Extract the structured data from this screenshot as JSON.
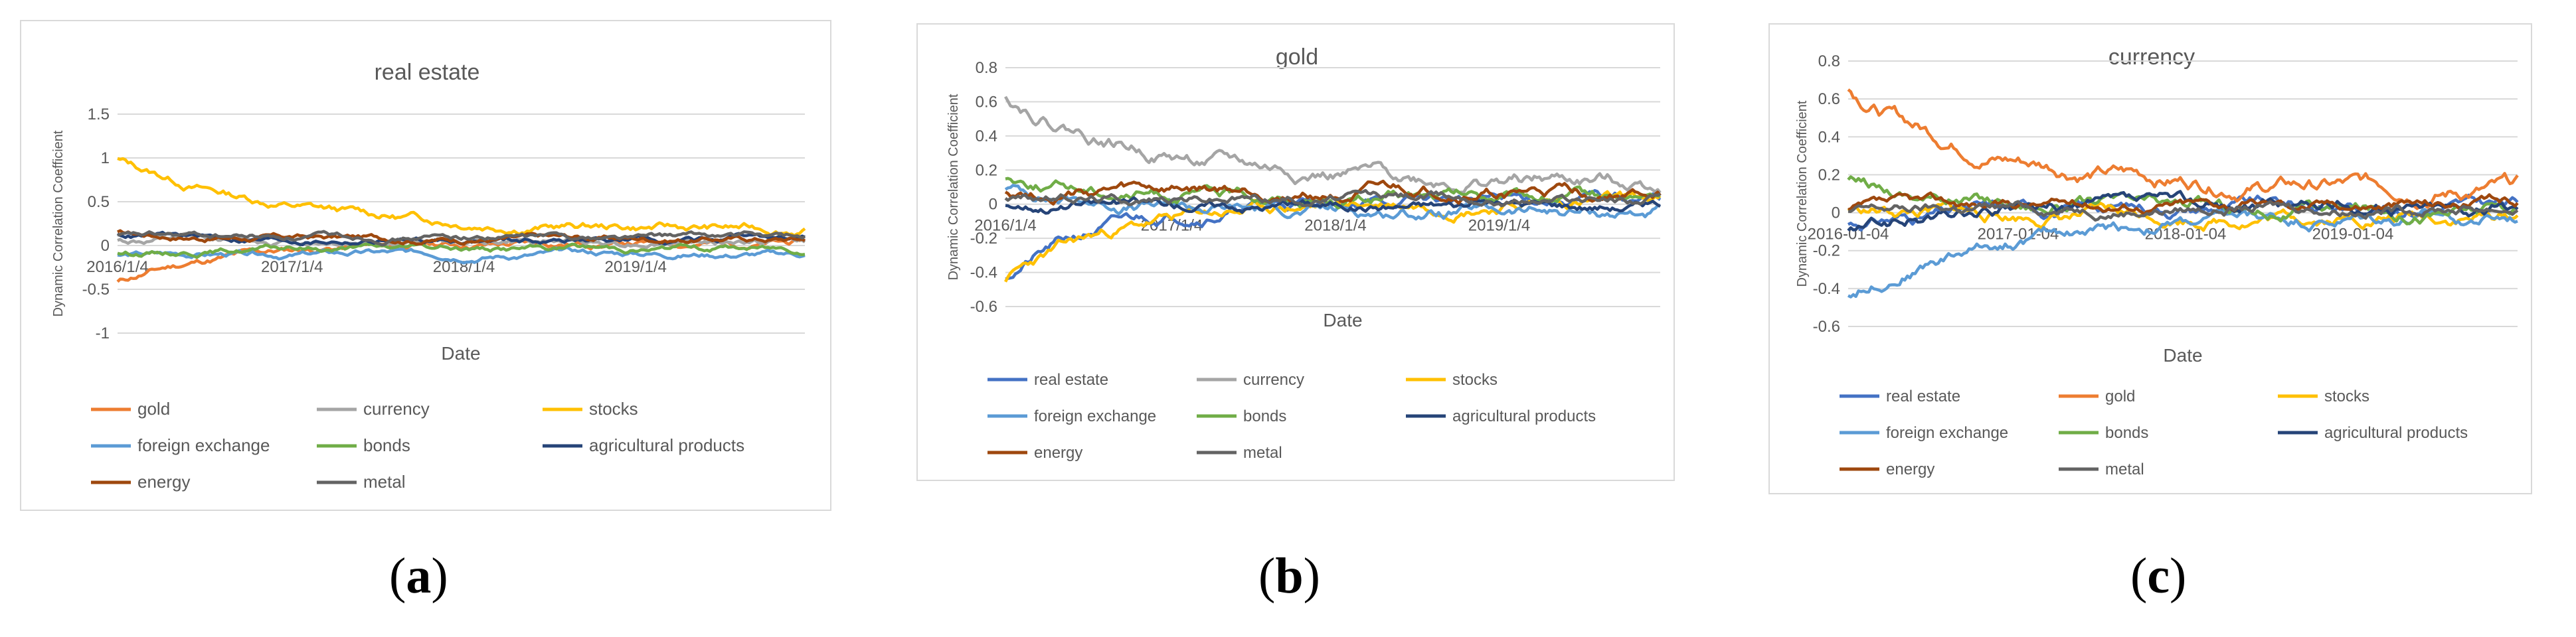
{
  "chart_data": [
    {
      "id": "a",
      "type": "line",
      "title": "real estate",
      "xlabel": "Date",
      "ylabel": "Dynamic Correlation Coefficient",
      "ylim": [
        -1,
        1.5
      ],
      "yticks": [
        "1.5",
        "1",
        "0.5",
        "0",
        "-0.5",
        "-1"
      ],
      "ytick_values": [
        1.5,
        1,
        0.5,
        0,
        -0.5,
        -1
      ],
      "x_range": [
        2016.0,
        2020.0
      ],
      "xticks": [
        "2016/1/4",
        "2017/1/4",
        "2018/1/4",
        "2019/1/4"
      ],
      "xtick_values": [
        2016.0,
        2017.0,
        2018.0,
        2019.0
      ],
      "series": [
        {
          "name": "gold",
          "color": "#ed7d31",
          "start": -0.42,
          "end": 0.03,
          "decay": 0.35,
          "noise": 0.03,
          "seed": 11
        },
        {
          "name": "currency",
          "color": "#a5a5a5",
          "start": 0.05,
          "end": 0.05,
          "decay": 0.3,
          "noise": 0.03,
          "seed": 12
        },
        {
          "name": "stocks",
          "color": "#ffc000",
          "start": 0.98,
          "end": 0.17,
          "decay": 0.55,
          "noise": 0.035,
          "seed": 13
        },
        {
          "name": "foreign exchange",
          "color": "#5b9bd5",
          "start": -0.12,
          "end": -0.1,
          "decay": 0.3,
          "noise": 0.025,
          "seed": 14
        },
        {
          "name": "bonds",
          "color": "#70ad47",
          "start": -0.1,
          "end": -0.03,
          "decay": 0.3,
          "noise": 0.025,
          "seed": 15
        },
        {
          "name": "agricultural products",
          "color": "#264478",
          "start": 0.12,
          "end": 0.06,
          "decay": 0.3,
          "noise": 0.025,
          "seed": 16
        },
        {
          "name": "energy",
          "color": "#9e480e",
          "start": 0.14,
          "end": 0.08,
          "decay": 0.3,
          "noise": 0.025,
          "seed": 17
        },
        {
          "name": "metal",
          "color": "#636363",
          "start": 0.1,
          "end": 0.1,
          "decay": 0.3,
          "noise": 0.025,
          "seed": 18
        }
      ]
    },
    {
      "id": "b",
      "type": "line",
      "title": "gold",
      "xlabel": "Date",
      "ylabel": "Dynamic Correlation Coefficient",
      "ylim": [
        -0.6,
        0.8
      ],
      "yticks": [
        "0.8",
        "0.6",
        "0.4",
        "0.2",
        "0",
        "-0.2",
        "-0.4",
        "-0.6"
      ],
      "ytick_values": [
        0.8,
        0.6,
        0.4,
        0.2,
        0,
        -0.2,
        -0.4,
        -0.6
      ],
      "x_range": [
        2016.0,
        2020.0
      ],
      "xticks": [
        "2016/1/4",
        "2017/1/4",
        "2018/1/4",
        "2019/1/4"
      ],
      "xtick_values": [
        2016.0,
        2017.0,
        2018.0,
        2019.0
      ],
      "series": [
        {
          "name": "real estate",
          "color": "#4472c4",
          "start": -0.42,
          "end": 0.03,
          "decay": 0.35,
          "noise": 0.025,
          "seed": 21
        },
        {
          "name": "currency",
          "color": "#a5a5a5",
          "start": 0.65,
          "end": 0.12,
          "decay": 0.5,
          "noise": 0.03,
          "seed": 22
        },
        {
          "name": "stocks",
          "color": "#ffc000",
          "start": -0.44,
          "end": 0.02,
          "decay": 0.4,
          "noise": 0.025,
          "seed": 23
        },
        {
          "name": "foreign exchange",
          "color": "#5b9bd5",
          "start": 0.1,
          "end": -0.05,
          "decay": 0.4,
          "noise": 0.025,
          "seed": 24
        },
        {
          "name": "bonds",
          "color": "#70ad47",
          "start": 0.16,
          "end": 0.03,
          "decay": 0.4,
          "noise": 0.025,
          "seed": 25
        },
        {
          "name": "agricultural products",
          "color": "#264478",
          "start": 0.0,
          "end": 0.0,
          "decay": 0.3,
          "noise": 0.02,
          "seed": 26
        },
        {
          "name": "energy",
          "color": "#9e480e",
          "start": 0.08,
          "end": 0.06,
          "decay": 0.3,
          "noise": 0.025,
          "seed": 27
        },
        {
          "name": "metal",
          "color": "#636363",
          "start": 0.04,
          "end": 0.04,
          "decay": 0.3,
          "noise": 0.02,
          "seed": 28
        }
      ]
    },
    {
      "id": "c",
      "type": "line",
      "title": "currency",
      "xlabel": "Date",
      "ylabel": "Dynamic Correlation Coefficient",
      "ylim": [
        -0.6,
        0.8
      ],
      "yticks": [
        "0.8",
        "0.6",
        "0.4",
        "0.2",
        "0",
        "-0.2",
        "-0.4",
        "-0.6"
      ],
      "ytick_values": [
        0.8,
        0.6,
        0.4,
        0.2,
        0,
        -0.2,
        -0.4,
        -0.6
      ],
      "x_range": [
        2016.0,
        2020.0
      ],
      "xticks": [
        "2016-01-04",
        "2017-01-04",
        "2018-01-04",
        "2019-01-04"
      ],
      "xtick_values": [
        2016.0,
        2017.0,
        2018.0,
        2019.0
      ],
      "series": [
        {
          "name": "real estate",
          "color": "#4472c4",
          "start": -0.06,
          "end": 0.04,
          "decay": 0.4,
          "noise": 0.025,
          "seed": 31
        },
        {
          "name": "gold",
          "color": "#ed7d31",
          "start": 0.65,
          "end": 0.12,
          "decay": 0.5,
          "noise": 0.03,
          "seed": 32
        },
        {
          "name": "stocks",
          "color": "#ffc000",
          "start": 0.02,
          "end": -0.02,
          "decay": 0.3,
          "noise": 0.025,
          "seed": 33
        },
        {
          "name": "foreign exchange",
          "color": "#5b9bd5",
          "start": -0.44,
          "end": -0.02,
          "decay": 0.45,
          "noise": 0.025,
          "seed": 34
        },
        {
          "name": "bonds",
          "color": "#70ad47",
          "start": 0.17,
          "end": 0.02,
          "decay": 0.4,
          "noise": 0.025,
          "seed": 35
        },
        {
          "name": "agricultural products",
          "color": "#264478",
          "start": -0.1,
          "end": 0.04,
          "decay": 0.4,
          "noise": 0.025,
          "seed": 36
        },
        {
          "name": "energy",
          "color": "#9e480e",
          "start": 0.01,
          "end": 0.05,
          "decay": 0.3,
          "noise": 0.02,
          "seed": 37
        },
        {
          "name": "metal",
          "color": "#636363",
          "start": 0.0,
          "end": 0.03,
          "decay": 0.3,
          "noise": 0.02,
          "seed": 38
        }
      ]
    }
  ],
  "captions": [
    "a",
    "b",
    "c"
  ]
}
